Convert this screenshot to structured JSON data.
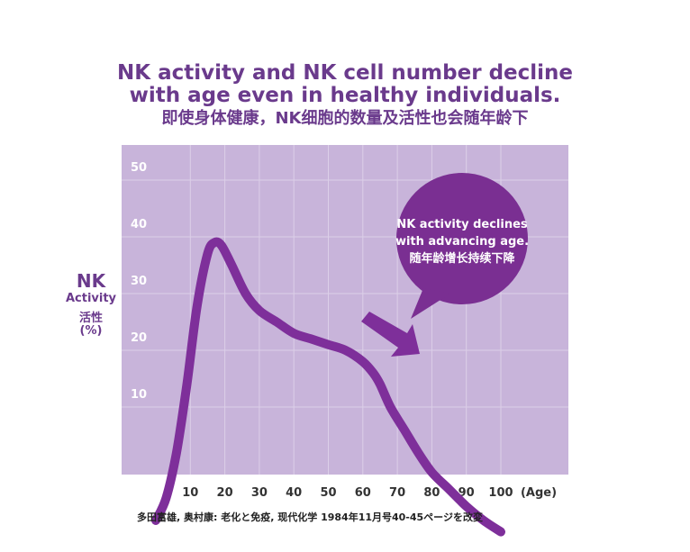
{
  "title": {
    "line1": "NK activity and NK cell number decline",
    "line2": "with age even in healthy individuals.",
    "line3": "即使身体健康，NK细胞的数量及活性也会随年龄下"
  },
  "ylabel": {
    "main": "NK",
    "en": "Activity",
    "zh": "活性",
    "unit": "(%)"
  },
  "callout": {
    "line1": "NK activity declines",
    "line2": "with advancing age.",
    "line3": "随年龄增长持续下降"
  },
  "source": "多田富雄, 奥村康: 老化と免疫, 现代化学 1984年11月号40-45ページを改変",
  "colors": {
    "plot_bg": "#c8b4da",
    "grid": "#dccfe8",
    "curve": "#7e2f9a",
    "bubble": "#7a2f92",
    "text": "#6a3a8c"
  },
  "chart_data": {
    "type": "line",
    "xlabel": "(Age)",
    "x_ticks": [
      10,
      20,
      30,
      40,
      50,
      60,
      70,
      80,
      90,
      100
    ],
    "y_ticks": [
      10,
      20,
      30,
      40,
      50
    ],
    "xlim": [
      0,
      110
    ],
    "ylim": [
      -12,
      55
    ],
    "grid": true,
    "series": [
      {
        "x": [
          0,
          3,
          6,
          9,
          12,
          15,
          17,
          19,
          22,
          26,
          30,
          35,
          40,
          45,
          50,
          55,
          60,
          63,
          65,
          68,
          72,
          76,
          80,
          85,
          90,
          95,
          100
        ],
        "y": [
          -10,
          -6,
          2,
          14,
          28,
          37,
          39,
          38.5,
          35,
          30,
          27,
          25,
          23,
          22,
          21,
          20,
          18,
          16,
          14,
          10,
          6,
          2,
          -1.5,
          -4.5,
          -7.5,
          -10,
          -12
        ]
      }
    ]
  }
}
